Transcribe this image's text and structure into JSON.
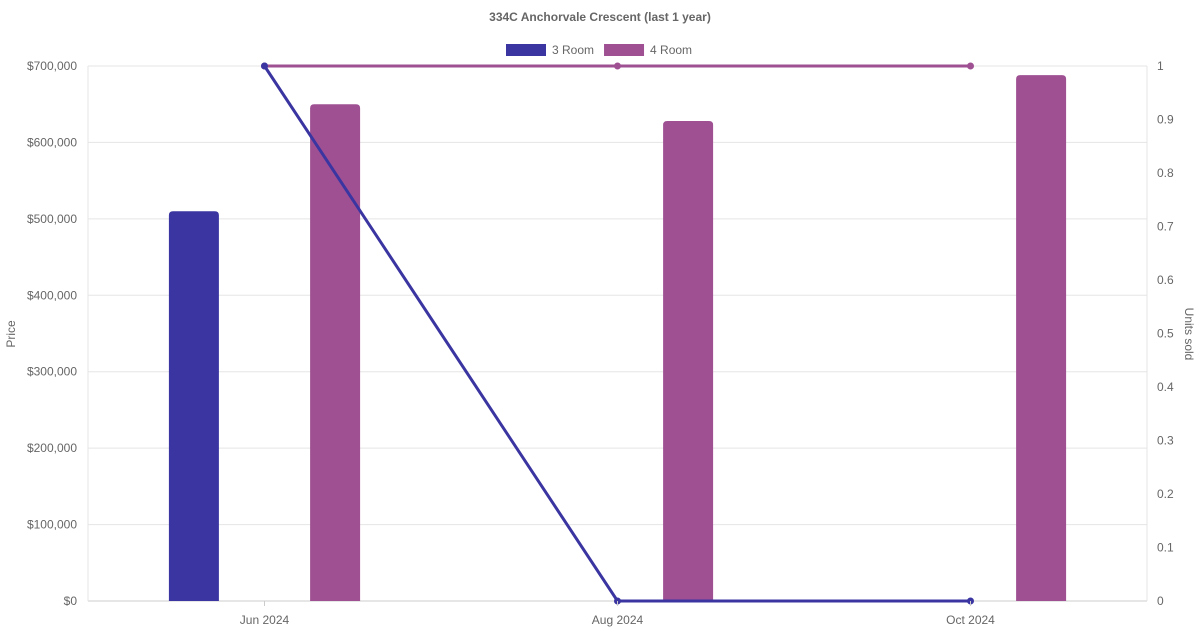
{
  "chart_data": {
    "type": "bar",
    "title": "334C Anchorvale Crescent (last 1 year)",
    "categories": [
      "Jun 2024",
      "Aug 2024",
      "Oct 2024"
    ],
    "ylabel": "Price",
    "y2label": "Units sold",
    "ylim": [
      0,
      700000
    ],
    "y2lim": [
      0,
      1
    ],
    "yticks": [
      "$0",
      "$100,000",
      "$200,000",
      "$300,000",
      "$400,000",
      "$500,000",
      "$600,000",
      "$700,000"
    ],
    "y2ticks": [
      "0",
      "0.1",
      "0.2",
      "0.3",
      "0.4",
      "0.5",
      "0.6",
      "0.7",
      "0.8",
      "0.9",
      "1"
    ],
    "grid": true,
    "legend_position": "top",
    "series": [
      {
        "name": "3 Room",
        "color": "#3a35a0",
        "price": [
          510000,
          null,
          null
        ],
        "units_sold": [
          1,
          0,
          0
        ]
      },
      {
        "name": "4 Room",
        "color": "#9e5093",
        "price": [
          650000,
          628000,
          688000
        ],
        "units_sold": [
          1,
          1,
          1
        ]
      }
    ]
  }
}
